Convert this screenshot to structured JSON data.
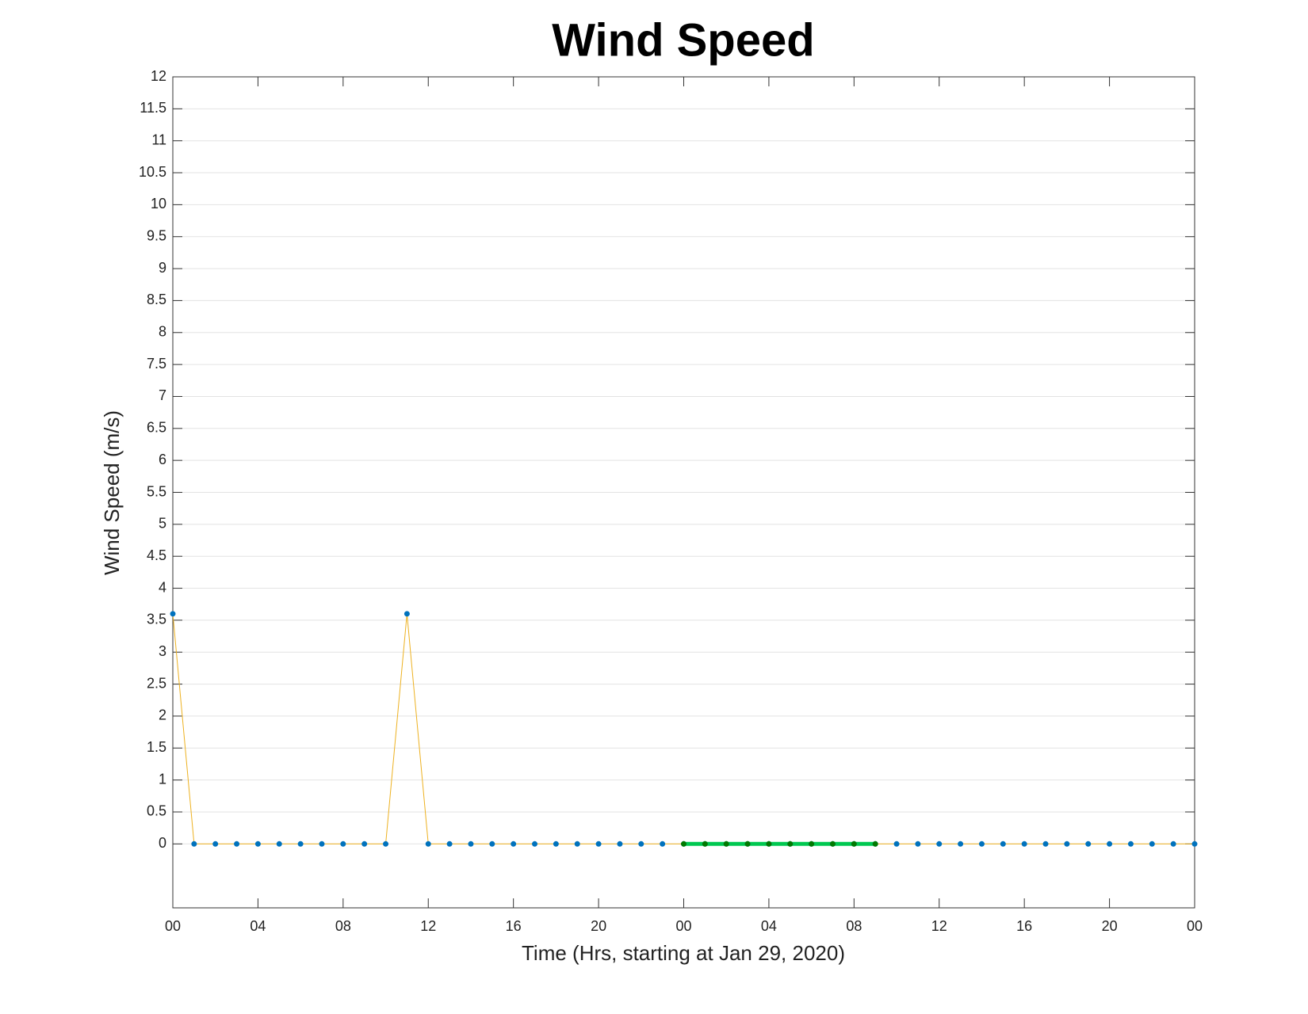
{
  "chart_data": {
    "type": "line",
    "title": "Wind Speed",
    "xlabel": "Time (Hrs, starting at Jan 29, 2020)",
    "ylabel": "Wind Speed (m/s)",
    "xlim": [
      0,
      48
    ],
    "ylim": [
      -1,
      12
    ],
    "xticks": [
      {
        "value": 0,
        "label": "00"
      },
      {
        "value": 4,
        "label": "04"
      },
      {
        "value": 8,
        "label": "08"
      },
      {
        "value": 12,
        "label": "12"
      },
      {
        "value": 16,
        "label": "16"
      },
      {
        "value": 20,
        "label": "20"
      },
      {
        "value": 24,
        "label": "00"
      },
      {
        "value": 28,
        "label": "04"
      },
      {
        "value": 32,
        "label": "08"
      },
      {
        "value": 36,
        "label": "12"
      },
      {
        "value": 40,
        "label": "16"
      },
      {
        "value": 44,
        "label": "20"
      },
      {
        "value": 48,
        "label": "00"
      }
    ],
    "yticks": [
      0,
      0.5,
      1,
      1.5,
      2,
      2.5,
      3,
      3.5,
      4,
      4.5,
      5,
      5.5,
      6,
      6.5,
      7,
      7.5,
      8,
      8.5,
      9,
      9.5,
      10,
      10.5,
      11,
      11.5,
      12
    ],
    "ygrid": true,
    "series": [
      {
        "color": "#edb120",
        "marker_color": "#0072bd",
        "line_width": 1,
        "x": [
          0,
          1,
          2,
          3,
          4,
          5,
          6,
          7,
          8,
          9,
          10,
          11,
          12,
          13,
          14,
          15,
          16,
          17,
          18,
          19,
          20,
          21,
          22,
          23,
          24,
          25,
          26,
          27,
          28,
          29,
          30,
          31,
          32,
          33,
          34,
          35,
          36,
          37,
          38,
          39,
          40,
          41,
          42,
          43,
          44,
          45,
          46,
          47,
          48
        ],
        "values": [
          3.6,
          0,
          0,
          0,
          0,
          0,
          0,
          0,
          0,
          0,
          0,
          3.6,
          0,
          0,
          0,
          0,
          0,
          0,
          0,
          0,
          0,
          0,
          0,
          0,
          0,
          0,
          0,
          0,
          0,
          0,
          0,
          0,
          0,
          0,
          0,
          0,
          0,
          0,
          0,
          0,
          0,
          0,
          0,
          0,
          0,
          0,
          0,
          0,
          0
        ]
      },
      {
        "color": "#00c850",
        "marker_color": "#007a00",
        "line_width": 5,
        "x": [
          24,
          25,
          26,
          27,
          28,
          29,
          30,
          31,
          32,
          33
        ],
        "values": [
          0,
          0,
          0,
          0,
          0,
          0,
          0,
          0,
          0,
          0
        ]
      }
    ]
  }
}
